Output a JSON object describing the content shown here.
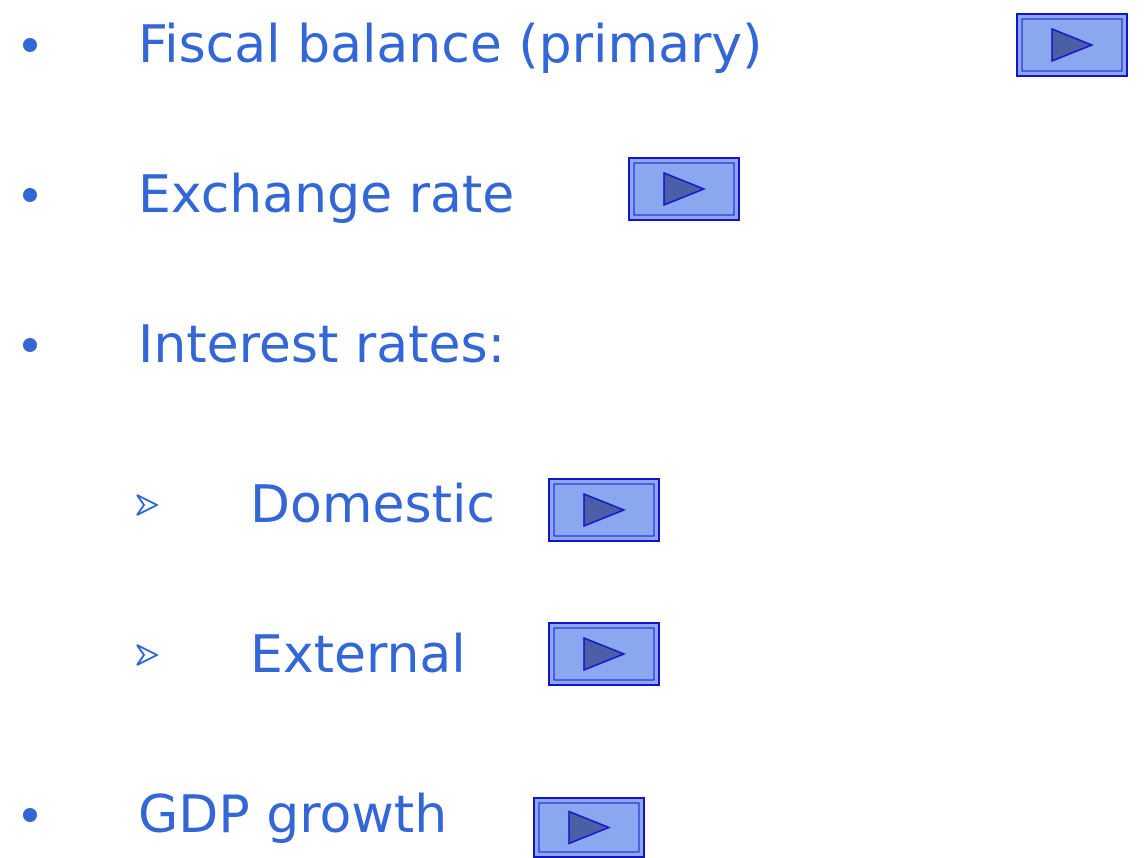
{
  "items": [
    "Fiscal balance (primary)",
    "Exchange rate",
    "Interest rates:",
    "Domestic",
    "External",
    "GDP growth"
  ]
}
